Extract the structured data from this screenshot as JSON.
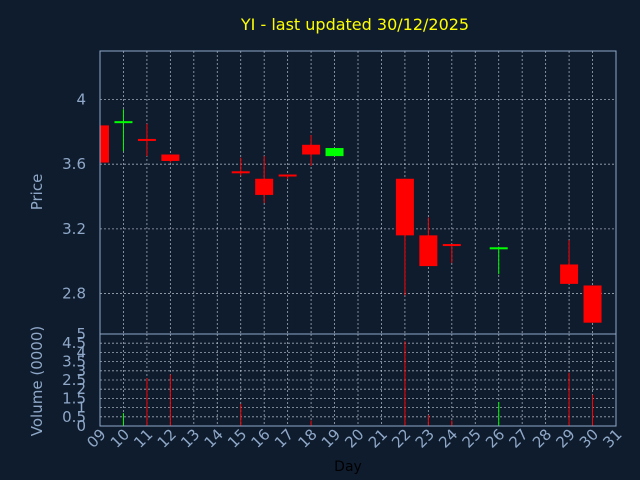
{
  "chart_data": [
    {
      "type": "candlestick",
      "title": "YI - last updated 30/12/2025",
      "xlabel": "Day",
      "ylabel": "Price",
      "xlim": [
        9,
        31
      ],
      "ylim": [
        2.55,
        4.3
      ],
      "yticks": [
        2.8,
        3.2,
        3.6,
        4.0
      ],
      "ytick_labels": [
        "2.8",
        "3.2",
        "3.6",
        "4"
      ],
      "grid": true,
      "colors": {
        "up": "#00ff00",
        "down": "#ff0000",
        "flat": "#ff0000",
        "background": "#0f1c2e",
        "title": "#ffff00",
        "axis": "#8fa8c8"
      },
      "candles": [
        {
          "day": 9,
          "open": 3.84,
          "high": 3.84,
          "low": 3.61,
          "close": 3.61
        },
        {
          "day": 10,
          "open": 3.85,
          "high": 3.94,
          "low": 3.68,
          "close": 3.86
        },
        {
          "day": 11,
          "open": 3.75,
          "high": 3.85,
          "low": 3.65,
          "close": 3.75
        },
        {
          "day": 12,
          "open": 3.66,
          "high": 3.66,
          "low": 3.61,
          "close": 3.62
        },
        {
          "day": 15,
          "open": 3.55,
          "high": 3.64,
          "low": 3.53,
          "close": 3.54
        },
        {
          "day": 16,
          "open": 3.51,
          "high": 3.65,
          "low": 3.36,
          "close": 3.41
        },
        {
          "day": 17,
          "open": 3.53,
          "high": 3.53,
          "low": 3.51,
          "close": 3.52
        },
        {
          "day": 18,
          "open": 3.72,
          "high": 3.78,
          "low": 3.59,
          "close": 3.66
        },
        {
          "day": 19,
          "open": 3.65,
          "high": 3.7,
          "low": 3.65,
          "close": 3.7
        },
        {
          "day": 22,
          "open": 3.51,
          "high": 3.51,
          "low": 2.79,
          "close": 3.16
        },
        {
          "day": 23,
          "open": 3.16,
          "high": 3.27,
          "low": 2.97,
          "close": 2.97
        },
        {
          "day": 24,
          "open": 3.1,
          "high": 3.1,
          "low": 2.99,
          "close": 3.09
        },
        {
          "day": 26,
          "open": 3.07,
          "high": 3.09,
          "low": 2.92,
          "close": 3.08
        },
        {
          "day": 29,
          "open": 2.98,
          "high": 3.13,
          "low": 2.86,
          "close": 2.86
        },
        {
          "day": 30,
          "open": 2.85,
          "high": 2.85,
          "low": 2.62,
          "close": 2.62
        }
      ]
    },
    {
      "type": "bar",
      "xlabel": "Day",
      "ylabel": "Volume (0000)",
      "ylim": [
        0,
        5
      ],
      "yticks": [
        0,
        0.5,
        1,
        1.5,
        2,
        2.5,
        3,
        3.5,
        4,
        4.5,
        5
      ],
      "ytick_labels": [
        "0",
        "0.5",
        "1",
        "1.5",
        "2",
        "2.5",
        "3",
        "3.5",
        "4",
        "4.5",
        "5"
      ],
      "xticks": [
        9,
        10,
        11,
        12,
        13,
        14,
        15,
        16,
        17,
        18,
        19,
        20,
        21,
        22,
        23,
        24,
        25,
        26,
        27,
        28,
        29,
        30,
        31
      ],
      "xtick_labels": [
        "09",
        "10",
        "11",
        "12",
        "13",
        "14",
        "15",
        "16",
        "17",
        "18",
        "19",
        "20",
        "21",
        "22",
        "23",
        "24",
        "25",
        "26",
        "27",
        "28",
        "29",
        "30",
        "31"
      ],
      "volumes": [
        {
          "day": 10,
          "value": 0.7,
          "direction": "up"
        },
        {
          "day": 11,
          "value": 2.6,
          "direction": "down"
        },
        {
          "day": 12,
          "value": 2.8,
          "direction": "down"
        },
        {
          "day": 15,
          "value": 1.2,
          "direction": "down"
        },
        {
          "day": 18,
          "value": 0.3,
          "direction": "down"
        },
        {
          "day": 22,
          "value": 4.6,
          "direction": "down"
        },
        {
          "day": 23,
          "value": 0.6,
          "direction": "down"
        },
        {
          "day": 24,
          "value": 0.3,
          "direction": "down"
        },
        {
          "day": 26,
          "value": 1.3,
          "direction": "up"
        },
        {
          "day": 29,
          "value": 2.9,
          "direction": "down"
        },
        {
          "day": 30,
          "value": 1.7,
          "direction": "down"
        }
      ]
    }
  ]
}
